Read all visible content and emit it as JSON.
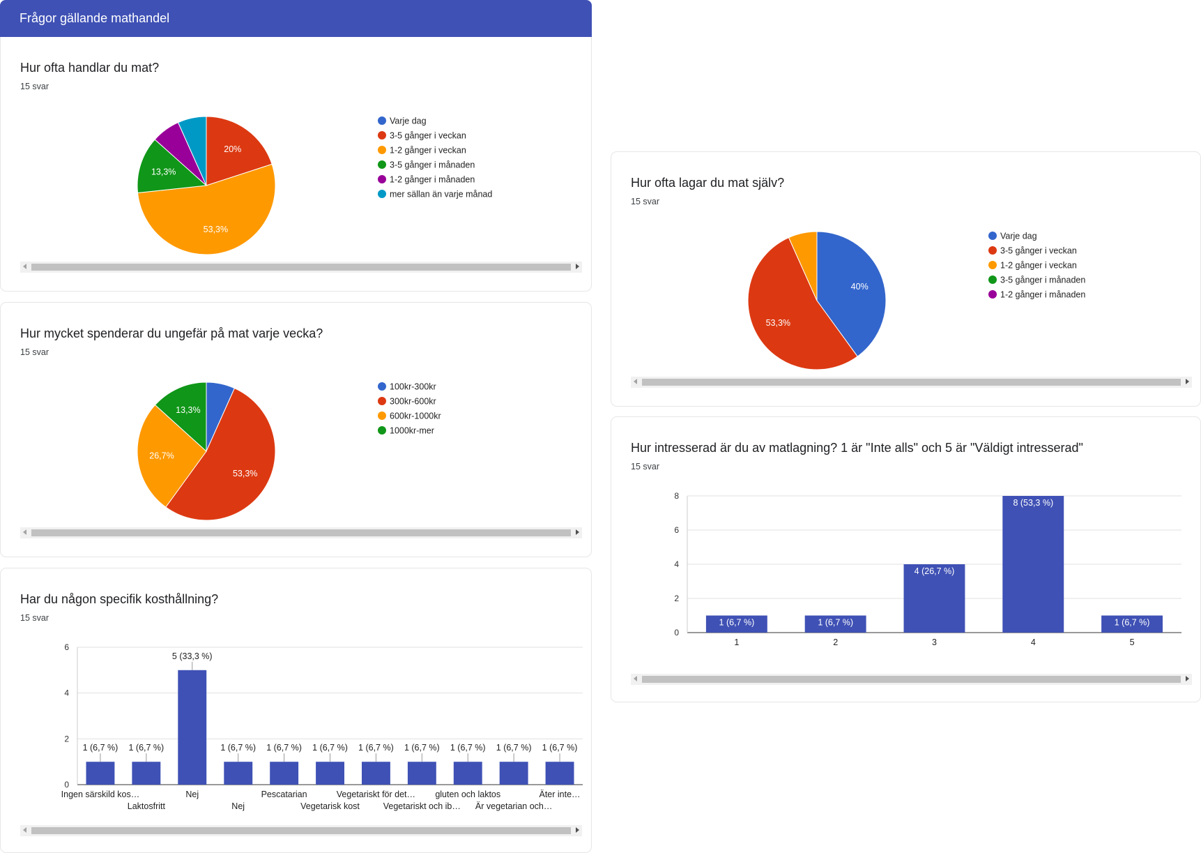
{
  "header": {
    "title": "Frågor gällande mathandel"
  },
  "colors": {
    "blue": "#3366cc",
    "red": "#dc3912",
    "orange": "#ff9900",
    "green": "#109618",
    "purple": "#990099",
    "teal": "#0099c6",
    "bar": "#3f51b5",
    "header": "#3f51b5"
  },
  "chart_data": [
    {
      "id": "q1",
      "type": "pie",
      "title": "Hur ofta handlar du mat?",
      "responses": "15 svar",
      "slices": [
        {
          "label": "Varje dag",
          "value": 0,
          "pct_label": "",
          "color": "#3366cc"
        },
        {
          "label": "3-5 gånger i veckan",
          "value": 20,
          "pct_label": "20%",
          "color": "#dc3912"
        },
        {
          "label": "1-2 gånger i veckan",
          "value": 53.3,
          "pct_label": "53,3%",
          "color": "#ff9900"
        },
        {
          "label": "3-5 gånger i månaden",
          "value": 13.3,
          "pct_label": "13,3%",
          "color": "#109618"
        },
        {
          "label": "1-2 gånger i månaden",
          "value": 6.7,
          "pct_label": "",
          "color": "#990099"
        },
        {
          "label": "mer sällan än varje månad",
          "value": 6.7,
          "pct_label": "",
          "color": "#0099c6"
        }
      ]
    },
    {
      "id": "q2",
      "type": "pie",
      "title": "Hur mycket spenderar du ungefär på mat varje vecka?",
      "responses": "15 svar",
      "slices": [
        {
          "label": "100kr-300kr",
          "value": 6.7,
          "pct_label": "",
          "color": "#3366cc"
        },
        {
          "label": "300kr-600kr",
          "value": 53.3,
          "pct_label": "53,3%",
          "color": "#dc3912"
        },
        {
          "label": "600kr-1000kr",
          "value": 26.7,
          "pct_label": "26,7%",
          "color": "#ff9900"
        },
        {
          "label": "1000kr-mer",
          "value": 13.3,
          "pct_label": "13,3%",
          "color": "#109618"
        }
      ]
    },
    {
      "id": "q3",
      "type": "bar",
      "title": "Har du någon specifik kosthållning?",
      "responses": "15 svar",
      "ylim": [
        0,
        6
      ],
      "yticks": [
        "0",
        "2",
        "4",
        "6"
      ],
      "categories": [
        "Ingen särskild kos…",
        "Laktosfritt",
        "Nej",
        "Nej",
        "Pescatarian",
        "Vegetarisk kost",
        "Vegetariskt för det…",
        "Vegetariskt och ib…",
        "gluten och laktos",
        "Är vegetarian och…",
        "Äter inte…"
      ],
      "values": [
        1,
        1,
        5,
        1,
        1,
        1,
        1,
        1,
        1,
        1,
        1
      ],
      "data_labels": [
        "1 (6,7 %)",
        "1 (6,7 %)",
        "5 (33,3 %)",
        "1 (6,7 %)",
        "1 (6,7 %)",
        "1 (6,7 %)",
        "1 (6,7 %)",
        "1 (6,7 %)",
        "1 (6,7 %)",
        "1 (6,7 %)",
        "1 (6,7 %)"
      ]
    },
    {
      "id": "q4",
      "type": "pie",
      "title": "Hur ofta lagar du mat själv?",
      "responses": "15 svar",
      "slices": [
        {
          "label": "Varje dag",
          "value": 40,
          "pct_label": "40%",
          "color": "#3366cc"
        },
        {
          "label": "3-5 gånger i veckan",
          "value": 53.3,
          "pct_label": "53,3%",
          "color": "#dc3912"
        },
        {
          "label": "1-2 gånger i veckan",
          "value": 6.7,
          "pct_label": "",
          "color": "#ff9900"
        },
        {
          "label": "3-5 gånger i månaden",
          "value": 0,
          "pct_label": "",
          "color": "#109618"
        },
        {
          "label": "1-2 gånger i månaden",
          "value": 0,
          "pct_label": "",
          "color": "#990099"
        }
      ]
    },
    {
      "id": "q5",
      "type": "bar",
      "title": "Hur intresserad är du av matlagning? 1 är \"Inte alls\" och 5 är \"Väldigt intresserad\"",
      "responses": "15 svar",
      "ylim": [
        0,
        8
      ],
      "yticks": [
        "0",
        "2",
        "4",
        "6",
        "8"
      ],
      "categories": [
        "1",
        "2",
        "3",
        "4",
        "5"
      ],
      "values": [
        1,
        1,
        4,
        8,
        1
      ],
      "data_labels": [
        "1 (6,7 %)",
        "1 (6,7 %)",
        "4 (26,7 %)",
        "8 (53,3 %)",
        "1 (6,7 %)"
      ]
    }
  ]
}
